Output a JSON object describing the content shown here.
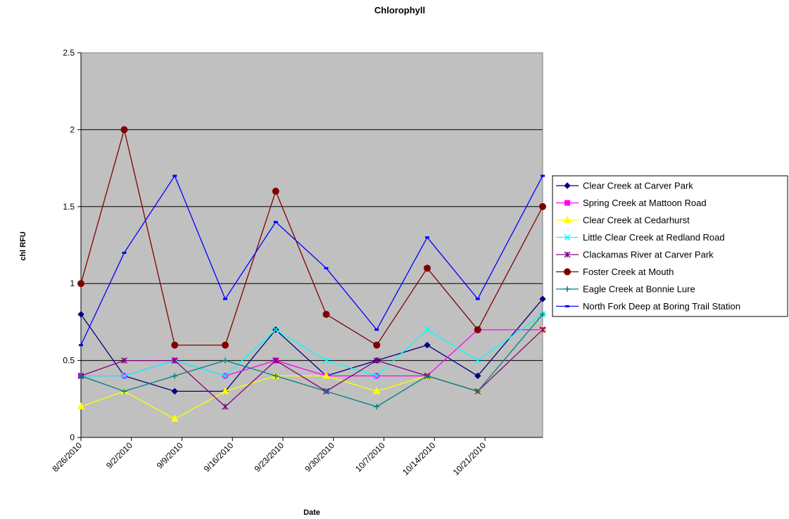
{
  "chart_data": {
    "type": "line",
    "title": "Chlorophyll",
    "xlabel": "Date",
    "ylabel": "chl RFU",
    "ylim": [
      0,
      2.5
    ],
    "yticks": [
      "0",
      "0.5",
      "1",
      "1.5",
      "2",
      "2.5"
    ],
    "xticks": [
      "8/26/2010",
      "9/2/2010",
      "9/9/2010",
      "9/16/2010",
      "9/23/2010",
      "9/30/2010",
      "10/7/2010",
      "10/14/2010",
      "10/21/2010"
    ],
    "xlim": [
      "8/26/2010",
      "10/29/2010"
    ],
    "grid": "horizontal",
    "plot_background": "#c0c0c0",
    "legend_position": "right",
    "x": [
      "8/26/2010",
      "9/1/2010",
      "9/8/2010",
      "9/15/2010",
      "9/22/2010",
      "9/29/2010",
      "10/6/2010",
      "10/13/2010",
      "10/20/2010",
      "10/29/2010"
    ],
    "series": [
      {
        "name": "Clear Creek at Carver Park",
        "color": "#000080",
        "marker": "diamond",
        "values": [
          0.8,
          0.4,
          0.3,
          0.3,
          0.7,
          0.4,
          0.5,
          0.6,
          0.4,
          0.9
        ]
      },
      {
        "name": "Spring Creek at Mattoon Road",
        "color": "#ff00ff",
        "marker": "square",
        "values": [
          0.4,
          0.4,
          0.5,
          0.4,
          0.5,
          0.4,
          0.4,
          0.4,
          0.7,
          0.7
        ]
      },
      {
        "name": "Clear Creek at Cedarhurst",
        "color": "#ffff00",
        "marker": "triangle",
        "values": [
          0.2,
          0.3,
          0.12,
          0.3,
          0.4,
          0.4,
          0.3,
          0.4,
          0.3,
          0.7
        ]
      },
      {
        "name": "Little Clear Creek at Redland Road",
        "color": "#00ffff",
        "marker": "x",
        "values": [
          0.4,
          0.4,
          0.5,
          0.4,
          0.7,
          0.5,
          0.4,
          0.7,
          0.5,
          0.8
        ]
      },
      {
        "name": "Clackamas River at Carver Park",
        "color": "#800080",
        "marker": "star",
        "values": [
          0.4,
          0.5,
          0.5,
          0.2,
          0.5,
          0.3,
          0.5,
          0.4,
          0.3,
          0.7
        ]
      },
      {
        "name": "Foster Creek at Mouth",
        "color": "#800000",
        "marker": "circle",
        "values": [
          1.0,
          2.0,
          0.6,
          0.6,
          1.6,
          0.8,
          0.6,
          1.1,
          0.7,
          1.5
        ]
      },
      {
        "name": "Eagle Creek at Bonnie Lure",
        "color": "#008080",
        "marker": "plus",
        "values": [
          0.4,
          0.3,
          0.4,
          0.5,
          0.4,
          0.3,
          0.2,
          0.4,
          0.3,
          0.8
        ]
      },
      {
        "name": "North Fork Deep at Boring Trail Station",
        "color": "#0000ff",
        "marker": "dash",
        "values": [
          0.6,
          1.2,
          1.7,
          0.9,
          1.4,
          1.1,
          0.7,
          1.3,
          0.9,
          1.7
        ]
      }
    ]
  }
}
